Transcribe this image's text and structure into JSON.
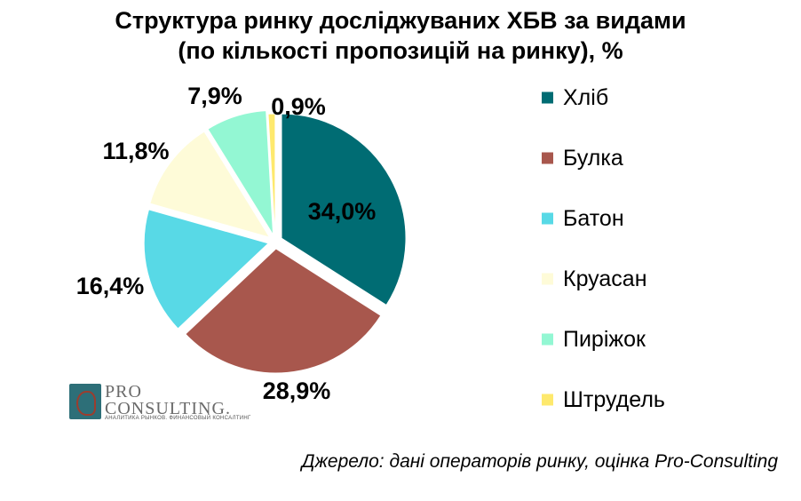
{
  "title": {
    "line1": "Структура ринку досліджуваних ХБВ за видами",
    "line2": "(по кількості пропозицій на ринку), %"
  },
  "chart_data": {
    "type": "pie",
    "title": "Структура ринку досліджуваних ХБВ за видами (по кількості пропозицій на ринку), %",
    "legend_position": "right",
    "slices": [
      {
        "name": "Хліб",
        "value": 34.0,
        "label": "34,0%",
        "color": "#006c73"
      },
      {
        "name": "Булка",
        "value": 28.9,
        "label": "28,9%",
        "color": "#a8574d"
      },
      {
        "name": "Батон",
        "value": 16.4,
        "label": "16,4%",
        "color": "#58d9e6"
      },
      {
        "name": "Круасан",
        "value": 11.8,
        "label": "11,8%",
        "color": "#fefbd8"
      },
      {
        "name": "Пиріжок",
        "value": 7.9,
        "label": "7,9%",
        "color": "#93f7d3"
      },
      {
        "name": "Штрудель",
        "value": 0.9,
        "label": "0,9%",
        "color": "#fee96d"
      }
    ]
  },
  "logo": {
    "line1": "PRO",
    "line2": "CONSULTING.",
    "tagline": "АНАЛИТИКА РЫНКОВ. ФИНАНСОВЫЙ КОНСАЛТИНГ"
  },
  "source": "Джерело: дані операторів ринку, оцінка Pro-Consulting"
}
